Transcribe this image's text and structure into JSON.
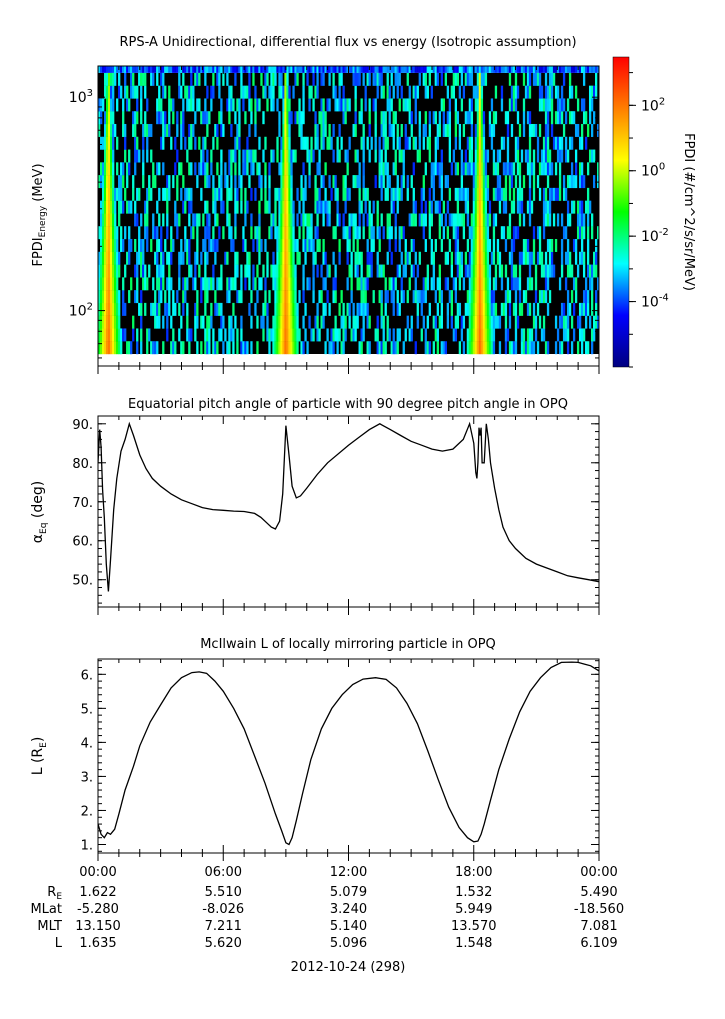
{
  "chart_data": [
    {
      "type": "heatmap",
      "title": "RPS-A Unidirectional, differential flux vs energy (Isotropic assumption)",
      "ylabel_main": "FPDI",
      "ylabel_sub": "Energy",
      "ylabel_unit": " (MeV)",
      "yscale": "log",
      "ylim": [
        55,
        1400
      ],
      "y_ticks": [
        {
          "value": 100,
          "base": "10",
          "exp": "2"
        },
        {
          "value": 1000,
          "base": "10",
          "exp": "3"
        }
      ],
      "xlim": [
        0,
        24
      ],
      "x_unit": "hours since 00:00 UT",
      "colorbar": {
        "label": "FPDI (#/cm^2/s/sr/MeV)",
        "scale": "log",
        "range": [
          1e-06,
          3000
        ],
        "ticks": [
          {
            "value": 100,
            "base": "10",
            "exp": "2"
          },
          {
            "value": 1,
            "base": "10",
            "exp": "0"
          },
          {
            "value": 0.01,
            "base": "10",
            "exp": "-2"
          },
          {
            "value": 0.0001,
            "base": "10",
            "exp": "-4"
          }
        ],
        "colors": [
          "#00007f",
          "#0000ff",
          "#00ffff",
          "#00ff00",
          "#ffff00",
          "#ff7f00",
          "#ff0000"
        ]
      },
      "bright_bands_hours": [
        0.5,
        9.0,
        18.3
      ]
    },
    {
      "type": "line",
      "title": "Equatorial pitch angle of particle with 90 degree pitch angle in OPQ",
      "ylabel_main": "α",
      "ylabel_sub": "Eq",
      "ylabel_unit": " (deg)",
      "ylim": [
        43,
        92
      ],
      "yticks": [
        "50.",
        "60.",
        "70.",
        "80.",
        "90."
      ],
      "ytick_values": [
        50,
        60,
        70,
        80,
        90
      ],
      "xlim": [
        0,
        24
      ],
      "series": [
        {
          "x": [
            0,
            0.08,
            0.15,
            0.22,
            0.3,
            0.4,
            0.5,
            0.6,
            0.75,
            0.9,
            1.1,
            1.3,
            1.5,
            1.7,
            2.0,
            2.3,
            2.6,
            3.0,
            3.5,
            4.0,
            4.5,
            5.0,
            5.5,
            6.0,
            6.5,
            7.0,
            7.5,
            7.8,
            8.0,
            8.3,
            8.5,
            8.7,
            8.85,
            9.0,
            9.15,
            9.3,
            9.5,
            9.7,
            10.0,
            10.5,
            11.0,
            12.0,
            12.5,
            13.0,
            13.5,
            14.0,
            14.5,
            15.0,
            15.5,
            16.0,
            16.5,
            17.0,
            17.5,
            17.8,
            18.0,
            18.1,
            18.15,
            18.2,
            18.25,
            18.3,
            18.35,
            18.4,
            18.5,
            18.6,
            18.7,
            18.8,
            19.0,
            19.2,
            19.4,
            19.7,
            20.0,
            20.5,
            21.0,
            21.5,
            22.0,
            22.5,
            23.0,
            23.5,
            24.0
          ],
          "values": [
            80,
            88.5,
            84,
            73,
            66,
            54,
            47,
            55,
            68,
            76,
            83,
            86,
            90,
            87,
            82,
            78.5,
            76,
            74,
            72,
            70.5,
            69.5,
            68.5,
            68,
            67.8,
            67.6,
            67.5,
            67,
            66,
            65,
            63.5,
            63,
            65,
            72,
            89.5,
            82,
            74,
            71,
            71.5,
            73.5,
            77,
            80,
            84.5,
            86.5,
            88.5,
            90,
            88.5,
            87,
            85.5,
            84.5,
            83.5,
            83,
            83.5,
            86,
            90,
            85,
            77.5,
            76,
            80,
            89,
            87,
            89,
            80,
            80,
            90,
            86,
            80,
            73.5,
            68,
            63.5,
            60,
            58,
            55.5,
            54,
            53,
            52,
            51,
            50.5,
            50,
            49.5
          ]
        }
      ]
    },
    {
      "type": "line",
      "title": "McIlwain L of locally mirroring particle in OPQ",
      "ylabel_main": "L (R",
      "ylabel_sub": "E",
      "ylabel_unit": ")",
      "ylim": [
        0.75,
        6.45
      ],
      "yticks": [
        "1.",
        "2.",
        "3.",
        "4.",
        "5.",
        "6."
      ],
      "ytick_values": [
        1,
        2,
        3,
        4,
        5,
        6
      ],
      "xlim": [
        0,
        24
      ],
      "series": [
        {
          "x": [
            0,
            0.15,
            0.3,
            0.45,
            0.6,
            0.8,
            1.0,
            1.3,
            1.7,
            2.0,
            2.5,
            3.0,
            3.5,
            4.0,
            4.5,
            4.85,
            5.2,
            5.6,
            6.0,
            6.5,
            7.0,
            7.5,
            8.0,
            8.5,
            8.8,
            9.0,
            9.15,
            9.3,
            9.5,
            9.8,
            10.2,
            10.7,
            11.2,
            11.7,
            12.2,
            12.7,
            13.3,
            13.8,
            14.3,
            14.8,
            15.3,
            15.8,
            16.3,
            16.8,
            17.3,
            17.7,
            18.0,
            18.2,
            18.35,
            18.5,
            18.8,
            19.2,
            19.7,
            20.2,
            20.7,
            21.2,
            21.7,
            22.2,
            22.7,
            23.0,
            23.3,
            23.6,
            24.0
          ],
          "values": [
            1.6,
            1.3,
            1.2,
            1.35,
            1.3,
            1.45,
            1.9,
            2.6,
            3.3,
            3.9,
            4.6,
            5.1,
            5.6,
            5.9,
            6.05,
            6.07,
            6.03,
            5.8,
            5.5,
            5.0,
            4.4,
            3.6,
            2.8,
            1.9,
            1.4,
            1.05,
            1.0,
            1.2,
            1.7,
            2.5,
            3.5,
            4.4,
            5.0,
            5.4,
            5.7,
            5.86,
            5.9,
            5.85,
            5.6,
            5.15,
            4.55,
            3.75,
            2.9,
            2.1,
            1.5,
            1.2,
            1.08,
            1.1,
            1.3,
            1.6,
            2.3,
            3.2,
            4.1,
            4.9,
            5.5,
            5.9,
            6.2,
            6.35,
            6.36,
            6.35,
            6.3,
            6.25,
            6.1
          ]
        }
      ]
    }
  ],
  "x_axis": {
    "tick_labels": [
      "00:00",
      "06:00",
      "12:00",
      "18:00",
      "00:00"
    ],
    "tick_hours": [
      0,
      6,
      12,
      18,
      24
    ],
    "ephemeris": [
      {
        "label": "R",
        "label_sub": "E",
        "values": [
          "1.622",
          "5.510",
          "5.079",
          "1.532",
          "5.490"
        ]
      },
      {
        "label": "MLat",
        "label_sub": "",
        "values": [
          "-5.280",
          "-8.026",
          "3.240",
          "5.949",
          "-18.560"
        ]
      },
      {
        "label": "MLT",
        "label_sub": "",
        "values": [
          "13.150",
          "7.211",
          "5.140",
          "13.570",
          "7.081"
        ]
      },
      {
        "label": "L",
        "label_sub": "",
        "values": [
          "1.635",
          "5.620",
          "5.096",
          "1.548",
          "6.109"
        ]
      }
    ],
    "date": "2012-10-24 (298)"
  }
}
